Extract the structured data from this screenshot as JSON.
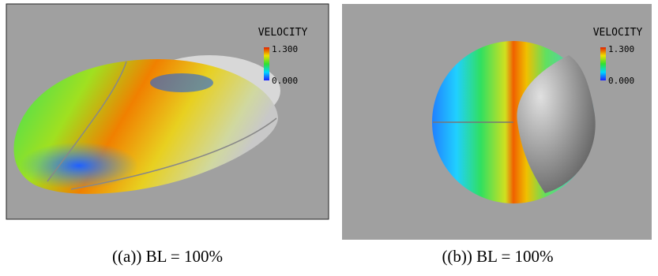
{
  "panels": [
    {
      "legend_title": "VELOCITY",
      "legend_max": "1.300",
      "legend_min": "0.000",
      "caption": "((a)) BL = 100%"
    },
    {
      "legend_title": "VELOCITY",
      "legend_max": "1.300",
      "legend_min": "0.000",
      "caption": "((b)) BL = 100%"
    }
  ]
}
